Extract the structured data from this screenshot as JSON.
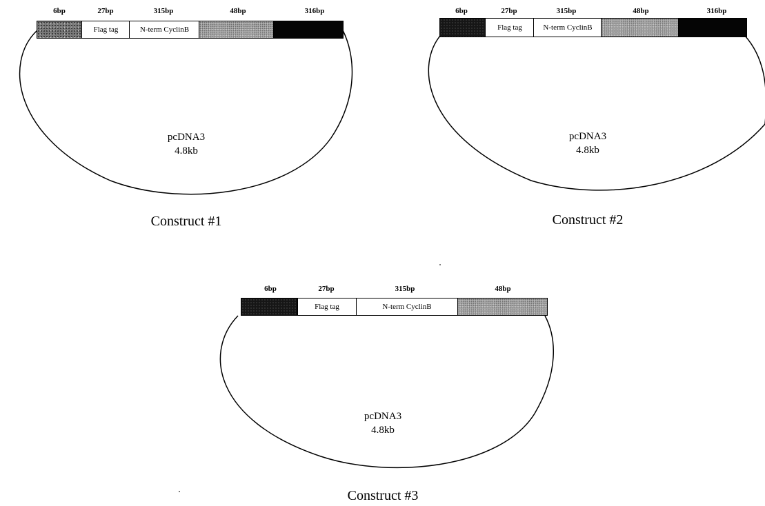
{
  "constructs": [
    {
      "caption": "Construct #1",
      "vector_name": "pcDNA3",
      "vector_size": "4.8kb",
      "segments": [
        {
          "bp": "6bp",
          "label": "",
          "fill": "speckle"
        },
        {
          "bp": "27bp",
          "label": "Flag tag",
          "fill": "white"
        },
        {
          "bp": "315bp",
          "label": "N-term CyclinB",
          "fill": "white"
        },
        {
          "bp": "48bp",
          "label": "",
          "fill": "gray"
        },
        {
          "bp": "316bp",
          "label": "",
          "fill": "black"
        }
      ]
    },
    {
      "caption": "Construct #2",
      "vector_name": "pcDNA3",
      "vector_size": "4.8kb",
      "segments": [
        {
          "bp": "6bp",
          "label": "",
          "fill": "dark"
        },
        {
          "bp": "27bp",
          "label": "Flag tag",
          "fill": "white"
        },
        {
          "bp": "315bp",
          "label": "N-term CyclinB",
          "fill": "white"
        },
        {
          "bp": "48bp",
          "label": "",
          "fill": "gray"
        },
        {
          "bp": "316bp",
          "label": "",
          "fill": "black"
        }
      ]
    },
    {
      "caption": "Construct #3",
      "vector_name": "pcDNA3",
      "vector_size": "4.8kb",
      "segments": [
        {
          "bp": "6bp",
          "label": "",
          "fill": "dark"
        },
        {
          "bp": "27bp",
          "label": "Flag tag",
          "fill": "white"
        },
        {
          "bp": "315bp",
          "label": "N-term CyclinB",
          "fill": "white"
        },
        {
          "bp": "48bp",
          "label": "",
          "fill": "gray"
        }
      ]
    }
  ]
}
